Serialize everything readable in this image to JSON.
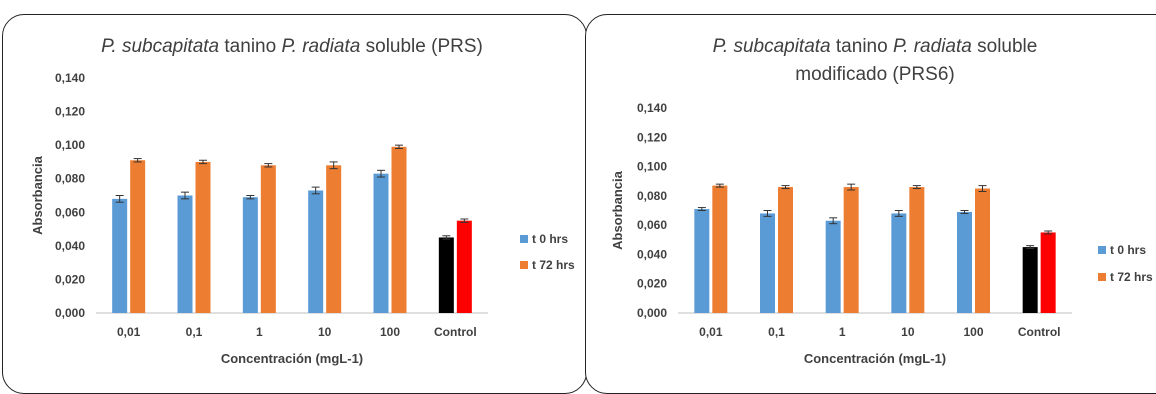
{
  "chart_data": [
    {
      "type": "bar",
      "title_parts": [
        {
          "text": "P. subcapitata",
          "italic": true
        },
        {
          "text": " tanino ",
          "italic": false
        },
        {
          "text": "P. radiata",
          "italic": true
        },
        {
          "text": " soluble (PRS)",
          "italic": false
        }
      ],
      "xlabel": "Concentración (mgL-1)",
      "ylabel": "Absorbancia",
      "ylim": [
        0,
        0.14
      ],
      "yticks": [
        "0,000",
        "0,020",
        "0,040",
        "0,060",
        "0,080",
        "0,100",
        "0,120",
        "0,140"
      ],
      "categories": [
        "0,01",
        "0,1",
        "1",
        "10",
        "100",
        "Control"
      ],
      "series": [
        {
          "name": "t 0 hrs",
          "color": "#5B9BD5",
          "control_color": "#000000",
          "values": [
            0.068,
            0.07,
            0.069,
            0.073,
            0.083,
            0.045
          ],
          "errors": [
            0.002,
            0.002,
            0.001,
            0.002,
            0.002,
            0.001
          ]
        },
        {
          "name": "t 72 hrs",
          "color": "#ED7D31",
          "control_color": "#FF0000",
          "values": [
            0.091,
            0.09,
            0.088,
            0.088,
            0.099,
            0.055
          ],
          "errors": [
            0.001,
            0.001,
            0.001,
            0.002,
            0.001,
            0.001
          ]
        }
      ],
      "legend_position": "right",
      "grid": false
    },
    {
      "type": "bar",
      "title_lines": [
        [
          {
            "text": "P. subcapitata",
            "italic": true
          },
          {
            "text": " tanino ",
            "italic": false
          },
          {
            "text": "P. radiata",
            "italic": true
          },
          {
            "text": " soluble",
            "italic": false
          }
        ],
        [
          {
            "text": "modificado (PRS6)",
            "italic": false
          }
        ]
      ],
      "xlabel": "Concentración (mgL-1)",
      "ylabel": "Absorbancia",
      "ylim": [
        0,
        0.14
      ],
      "yticks": [
        "0,000",
        "0,020",
        "0,040",
        "0,060",
        "0,080",
        "0,100",
        "0,120",
        "0,140"
      ],
      "categories": [
        "0,01",
        "0,1",
        "1",
        "10",
        "100",
        "Control"
      ],
      "series": [
        {
          "name": "t 0 hrs",
          "color": "#5B9BD5",
          "control_color": "#000000",
          "values": [
            0.071,
            0.068,
            0.063,
            0.068,
            0.069,
            0.045
          ],
          "errors": [
            0.001,
            0.002,
            0.002,
            0.002,
            0.001,
            0.001
          ]
        },
        {
          "name": "t 72 hrs",
          "color": "#ED7D31",
          "control_color": "#FF0000",
          "values": [
            0.087,
            0.086,
            0.086,
            0.086,
            0.085,
            0.055
          ],
          "errors": [
            0.001,
            0.001,
            0.002,
            0.001,
            0.002,
            0.001
          ]
        }
      ],
      "legend_position": "right",
      "grid": false
    }
  ]
}
